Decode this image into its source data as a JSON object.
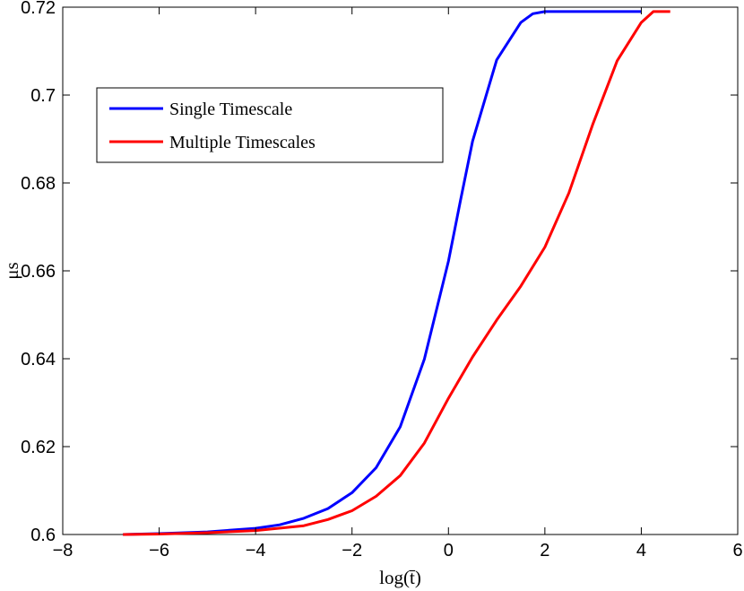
{
  "chart_data": {
    "type": "line",
    "title": "",
    "xlabel": "log(t̄)",
    "ylabel": "μs",
    "xlim": [
      -8,
      6
    ],
    "ylim": [
      0.6,
      0.72
    ],
    "xticks": [
      -8,
      -6,
      -4,
      -2,
      0,
      2,
      4,
      6
    ],
    "xtick_labels": [
      "−8",
      "−6",
      "−4",
      "−2",
      "0",
      "2",
      "4",
      "6"
    ],
    "yticks": [
      0.6,
      0.62,
      0.64,
      0.66,
      0.68,
      0.7,
      0.72
    ],
    "ytick_labels": [
      "0.6",
      "0.62",
      "0.64",
      "0.66",
      "0.68",
      "0.7",
      "0.72"
    ],
    "grid": false,
    "legend_position": "top-left",
    "series": [
      {
        "name": "Single Timescale",
        "color": "#0000ff",
        "x": [
          -6.75,
          -6,
          -5,
          -4,
          -3.5,
          -3,
          -2.5,
          -2,
          -1.5,
          -1,
          -0.5,
          0,
          0.25,
          0.5,
          1,
          1.5,
          1.75,
          2,
          3,
          4,
          4.0
        ],
        "y": [
          0.6,
          0.6002,
          0.6006,
          0.6014,
          0.6022,
          0.6037,
          0.6059,
          0.6095,
          0.6152,
          0.6245,
          0.6399,
          0.6622,
          0.676,
          0.6895,
          0.708,
          0.7165,
          0.7185,
          0.719,
          0.719,
          0.719,
          0.719
        ]
      },
      {
        "name": "Multiple Timescales",
        "color": "#ff0000",
        "x": [
          -6.75,
          -6,
          -5,
          -4,
          -3,
          -2.5,
          -2,
          -1.5,
          -1,
          -0.5,
          0,
          0.5,
          1,
          1.5,
          2,
          2.5,
          3,
          3.5,
          4,
          4.25,
          4.6
        ],
        "y": [
          0.6,
          0.6001,
          0.6004,
          0.6009,
          0.602,
          0.6034,
          0.6054,
          0.6087,
          0.6134,
          0.6208,
          0.631,
          0.6404,
          0.6488,
          0.6565,
          0.6654,
          0.6778,
          0.6935,
          0.7078,
          0.7165,
          0.719,
          0.719
        ]
      }
    ]
  }
}
